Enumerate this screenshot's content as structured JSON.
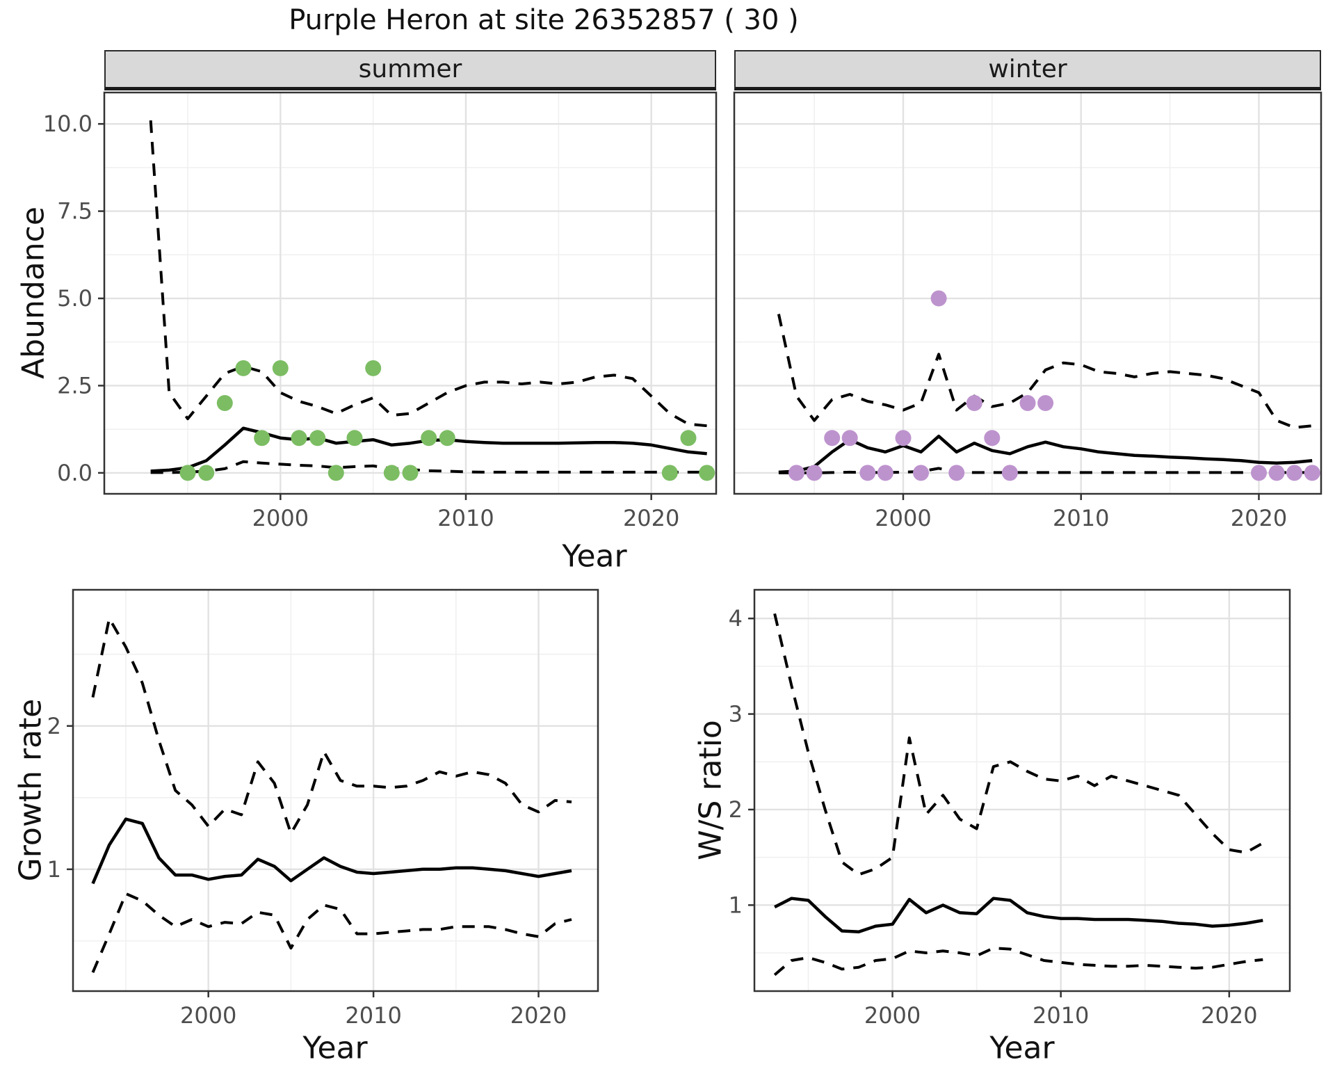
{
  "title": "Purple Heron at site 26352857 ( 30 )",
  "facets": [
    "summer",
    "winter"
  ],
  "labels": {
    "abundance": "Abundance",
    "growth": "Growth rate",
    "ws": "W/S ratio",
    "year": "Year"
  },
  "colors": {
    "summer_point": "#7cbd63",
    "winter_point": "#bd93ce",
    "line": "#000000",
    "strip_bg": "#d9d9d9",
    "grid_major": "#e2e2e2",
    "grid_minor": "#f0f0f0",
    "panel_border": "#333333",
    "tick_text": "#4d4d4d"
  },
  "chart_data": [
    {
      "id": "abundance_summer",
      "type": "line",
      "facet": "summer",
      "ylabel": "Abundance",
      "xlabel": "Year",
      "xlim": [
        1990.5,
        2023.5
      ],
      "ylim": [
        -0.6,
        10.9
      ],
      "xticks": [
        2000,
        2010,
        2020
      ],
      "xtick_labels": [
        "2000",
        "2010",
        "2020"
      ],
      "xminor": [
        1995,
        2005,
        2015
      ],
      "yticks": [
        0,
        2.5,
        5,
        7.5,
        10
      ],
      "ytick_labels": [
        "0.0",
        "2.5",
        "5.0",
        "7.5",
        "10.0"
      ],
      "yminor": [
        1.25,
        3.75,
        6.25,
        8.75
      ],
      "years": [
        1993,
        1994,
        1995,
        1996,
        1997,
        1998,
        1999,
        2000,
        2001,
        2002,
        2003,
        2004,
        2005,
        2006,
        2007,
        2008,
        2009,
        2010,
        2011,
        2012,
        2013,
        2014,
        2015,
        2016,
        2017,
        2018,
        2019,
        2020,
        2021,
        2022,
        2023
      ],
      "series": [
        {
          "name": "upper_ci",
          "style": "dashed",
          "values": [
            10.1,
            2.3,
            1.55,
            2.2,
            2.85,
            3.05,
            2.9,
            2.3,
            2.05,
            1.9,
            1.7,
            1.95,
            2.15,
            1.65,
            1.7,
            2.0,
            2.3,
            2.5,
            2.6,
            2.6,
            2.55,
            2.6,
            2.55,
            2.6,
            2.75,
            2.8,
            2.7,
            2.2,
            1.7,
            1.4,
            1.35
          ]
        },
        {
          "name": "mean",
          "style": "solid",
          "values": [
            0.05,
            0.08,
            0.15,
            0.35,
            0.8,
            1.28,
            1.15,
            1.0,
            0.95,
            1.0,
            0.85,
            0.9,
            0.95,
            0.8,
            0.85,
            0.93,
            0.95,
            0.9,
            0.87,
            0.85,
            0.85,
            0.85,
            0.85,
            0.86,
            0.87,
            0.87,
            0.85,
            0.8,
            0.7,
            0.6,
            0.55
          ]
        },
        {
          "name": "lower_ci",
          "style": "dashed",
          "values": [
            0.01,
            0.01,
            0.02,
            0.05,
            0.12,
            0.32,
            0.28,
            0.25,
            0.22,
            0.2,
            0.15,
            0.18,
            0.2,
            0.12,
            0.1,
            0.06,
            0.05,
            0.03,
            0.02,
            0.02,
            0.02,
            0.02,
            0.02,
            0.02,
            0.02,
            0.02,
            0.02,
            0.02,
            0.02,
            0.02,
            0.02
          ]
        }
      ],
      "points": {
        "name": "observed-counts-summer",
        "color_key": "summer_point",
        "x": [
          1995,
          1996,
          1997,
          1998,
          1999,
          2000,
          2001,
          2002,
          2003,
          2004,
          2005,
          2006,
          2007,
          2008,
          2009,
          2021,
          2022,
          2023
        ],
        "y": [
          0,
          0,
          2,
          3,
          1,
          3,
          1,
          1,
          0,
          1,
          3,
          0,
          0,
          1,
          1,
          0,
          1,
          0
        ]
      }
    },
    {
      "id": "abundance_winter",
      "type": "line",
      "facet": "winter",
      "ylabel": "Abundance",
      "xlabel": "Year",
      "xlim": [
        1990.5,
        2023.5
      ],
      "ylim": [
        -0.6,
        10.9
      ],
      "xticks": [
        2000,
        2010,
        2020
      ],
      "xtick_labels": [
        "2000",
        "2010",
        "2020"
      ],
      "xminor": [
        1995,
        2005,
        2015
      ],
      "yticks": [
        0,
        2.5,
        5,
        7.5,
        10
      ],
      "ytick_labels": null,
      "yminor": [
        1.25,
        3.75,
        6.25,
        8.75
      ],
      "years": [
        1993,
        1994,
        1995,
        1996,
        1997,
        1998,
        1999,
        2000,
        2001,
        2002,
        2003,
        2004,
        2005,
        2006,
        2007,
        2008,
        2009,
        2010,
        2011,
        2012,
        2013,
        2014,
        2015,
        2016,
        2017,
        2018,
        2019,
        2020,
        2021,
        2022,
        2023
      ],
      "series": [
        {
          "name": "upper_ci",
          "style": "dashed",
          "values": [
            4.55,
            2.2,
            1.5,
            2.1,
            2.25,
            2.05,
            1.95,
            1.8,
            2.0,
            3.4,
            1.8,
            2.2,
            1.9,
            2.0,
            2.3,
            2.95,
            3.15,
            3.1,
            2.9,
            2.85,
            2.75,
            2.85,
            2.9,
            2.85,
            2.8,
            2.7,
            2.5,
            2.3,
            1.5,
            1.3,
            1.35
          ]
        },
        {
          "name": "mean",
          "style": "solid",
          "values": [
            0.02,
            0.05,
            0.18,
            0.6,
            0.95,
            0.72,
            0.6,
            0.78,
            0.6,
            1.05,
            0.6,
            0.85,
            0.64,
            0.55,
            0.75,
            0.88,
            0.75,
            0.69,
            0.6,
            0.55,
            0.5,
            0.48,
            0.45,
            0.43,
            0.4,
            0.38,
            0.35,
            0.3,
            0.28,
            0.3,
            0.35
          ]
        },
        {
          "name": "lower_ci",
          "style": "dashed",
          "values": [
            0,
            0,
            0,
            0.01,
            0.02,
            0.01,
            0.01,
            0.02,
            0.04,
            0.13,
            0.02,
            0.01,
            0.01,
            0.01,
            0.01,
            0.01,
            0.01,
            0.01,
            0.01,
            0.01,
            0.01,
            0.01,
            0.01,
            0.01,
            0.01,
            0.01,
            0.01,
            0.01,
            0.01,
            0.01,
            0.01
          ]
        }
      ],
      "points": {
        "name": "observed-counts-winter",
        "color_key": "winter_point",
        "x": [
          1994,
          1995,
          1996,
          1997,
          1998,
          1999,
          2000,
          2001,
          2002,
          2003,
          2004,
          2005,
          2006,
          2007,
          2008,
          2020,
          2021,
          2022,
          2023
        ],
        "y": [
          0,
          0,
          1,
          1,
          0,
          0,
          1,
          0,
          5,
          0,
          2,
          1,
          0,
          2,
          2,
          0,
          0,
          0,
          0
        ]
      }
    },
    {
      "id": "growth_rate",
      "type": "line",
      "ylabel": "Growth rate",
      "xlabel": "Year",
      "xlim": [
        1991.8,
        2023.6
      ],
      "ylim": [
        0.15,
        2.95
      ],
      "xticks": [
        2000,
        2010,
        2020
      ],
      "xtick_labels": [
        "2000",
        "2010",
        "2020"
      ],
      "xminor": [
        1995,
        2005,
        2015
      ],
      "yticks": [
        1,
        2
      ],
      "ytick_labels": [
        "1",
        "2"
      ],
      "yminor": [
        0.5,
        1.5,
        2.5
      ],
      "years": [
        1993,
        1994,
        1995,
        1996,
        1997,
        1998,
        1999,
        2000,
        2001,
        2002,
        2003,
        2004,
        2005,
        2006,
        2007,
        2008,
        2009,
        2010,
        2011,
        2012,
        2013,
        2014,
        2015,
        2016,
        2017,
        2018,
        2019,
        2020,
        2021,
        2022
      ],
      "series": [
        {
          "name": "upper_ci",
          "style": "dashed",
          "values": [
            2.2,
            2.75,
            2.55,
            2.3,
            1.9,
            1.55,
            1.45,
            1.3,
            1.42,
            1.38,
            1.75,
            1.6,
            1.25,
            1.45,
            1.82,
            1.62,
            1.58,
            1.58,
            1.57,
            1.58,
            1.62,
            1.68,
            1.65,
            1.68,
            1.66,
            1.6,
            1.45,
            1.4,
            1.48,
            1.47
          ]
        },
        {
          "name": "mean",
          "style": "solid",
          "values": [
            0.9,
            1.17,
            1.35,
            1.32,
            1.08,
            0.96,
            0.96,
            0.93,
            0.95,
            0.96,
            1.07,
            1.02,
            0.92,
            1.0,
            1.08,
            1.02,
            0.98,
            0.97,
            0.98,
            0.99,
            1.0,
            1.0,
            1.01,
            1.01,
            1.0,
            0.99,
            0.97,
            0.95,
            0.97,
            0.99
          ]
        },
        {
          "name": "lower_ci",
          "style": "dashed",
          "values": [
            0.28,
            0.55,
            0.83,
            0.78,
            0.68,
            0.6,
            0.65,
            0.6,
            0.63,
            0.62,
            0.7,
            0.68,
            0.45,
            0.65,
            0.75,
            0.72,
            0.55,
            0.55,
            0.56,
            0.57,
            0.58,
            0.58,
            0.6,
            0.6,
            0.6,
            0.58,
            0.55,
            0.53,
            0.62,
            0.65
          ]
        }
      ],
      "points": null
    },
    {
      "id": "ws_ratio",
      "type": "line",
      "ylabel": "W/S ratio",
      "xlabel": "Year",
      "xlim": [
        1991.8,
        2023.6
      ],
      "ylim": [
        0.1,
        4.3
      ],
      "xticks": [
        2000,
        2010,
        2020
      ],
      "xtick_labels": [
        "2000",
        "2010",
        "2020"
      ],
      "xminor": [
        1995,
        2005,
        2015
      ],
      "yticks": [
        1,
        2,
        3,
        4
      ],
      "ytick_labels": [
        "1",
        "2",
        "3",
        "4"
      ],
      "yminor": [
        0.5,
        1.5,
        2.5,
        3.5
      ],
      "years": [
        1993,
        1994,
        1995,
        1996,
        1997,
        1998,
        1999,
        2000,
        2001,
        2002,
        2003,
        2004,
        2005,
        2006,
        2007,
        2008,
        2009,
        2010,
        2011,
        2012,
        2013,
        2014,
        2015,
        2016,
        2017,
        2018,
        2019,
        2020,
        2021,
        2022
      ],
      "series": [
        {
          "name": "upper_ci",
          "style": "dashed",
          "values": [
            4.05,
            3.3,
            2.6,
            2.0,
            1.45,
            1.32,
            1.38,
            1.5,
            2.75,
            1.95,
            2.15,
            1.9,
            1.8,
            2.45,
            2.5,
            2.4,
            2.32,
            2.3,
            2.35,
            2.25,
            2.35,
            2.3,
            2.25,
            2.2,
            2.15,
            1.95,
            1.75,
            1.58,
            1.55,
            1.65
          ]
        },
        {
          "name": "mean",
          "style": "solid",
          "values": [
            0.98,
            1.07,
            1.05,
            0.88,
            0.73,
            0.72,
            0.78,
            0.8,
            1.06,
            0.92,
            1.0,
            0.92,
            0.91,
            1.07,
            1.05,
            0.92,
            0.88,
            0.86,
            0.86,
            0.85,
            0.85,
            0.85,
            0.84,
            0.83,
            0.81,
            0.8,
            0.78,
            0.79,
            0.81,
            0.84
          ]
        },
        {
          "name": "lower_ci",
          "style": "dashed",
          "values": [
            0.27,
            0.42,
            0.45,
            0.4,
            0.33,
            0.35,
            0.42,
            0.44,
            0.52,
            0.5,
            0.52,
            0.5,
            0.47,
            0.55,
            0.54,
            0.48,
            0.42,
            0.4,
            0.38,
            0.37,
            0.36,
            0.36,
            0.37,
            0.36,
            0.35,
            0.34,
            0.35,
            0.38,
            0.41,
            0.43
          ]
        }
      ],
      "points": null
    }
  ]
}
